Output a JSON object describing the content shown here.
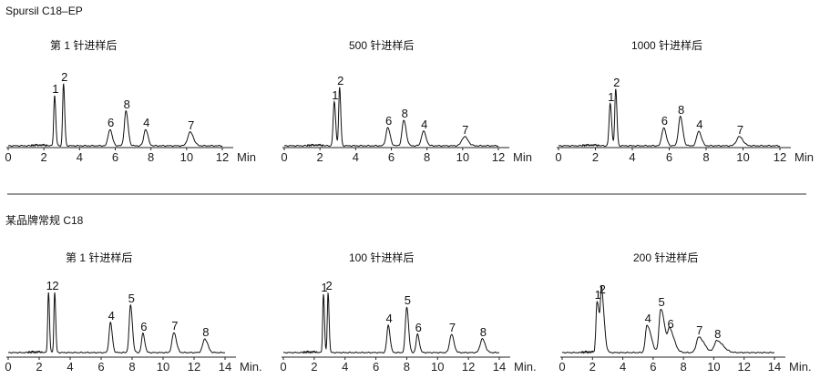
{
  "sections": [
    {
      "label": "Spursil C18–EP",
      "unit_label": "Min"
    },
    {
      "label": "某品牌常规 C18",
      "unit_label": "Min."
    }
  ],
  "chart_data": [
    {
      "type": "line",
      "section": 0,
      "title": "第 1 针进样后",
      "xlim": [
        0,
        12
      ],
      "xticks": [
        0,
        2,
        4,
        6,
        8,
        10,
        12
      ],
      "xlabel": "Min",
      "peaks": [
        {
          "label": "1",
          "rt": 2.6,
          "height": 55,
          "width": 0.05
        },
        {
          "label": "2",
          "rt": 3.1,
          "height": 68,
          "width": 0.05
        },
        {
          "label": "6",
          "rt": 5.7,
          "height": 18,
          "width": 0.1
        },
        {
          "label": "8",
          "rt": 6.6,
          "height": 38,
          "width": 0.09
        },
        {
          "label": "4",
          "rt": 7.7,
          "height": 18,
          "width": 0.1
        },
        {
          "label": "7",
          "rt": 10.2,
          "height": 15,
          "width": 0.14
        }
      ]
    },
    {
      "type": "line",
      "section": 0,
      "title": "500 针进样后",
      "xlim": [
        0,
        12
      ],
      "xticks": [
        0,
        2,
        4,
        6,
        8,
        10,
        12
      ],
      "xlabel": "Min",
      "peaks": [
        {
          "label": "1",
          "rt": 2.8,
          "height": 48,
          "width": 0.06
        },
        {
          "label": "2",
          "rt": 3.1,
          "height": 64,
          "width": 0.05
        },
        {
          "label": "6",
          "rt": 5.8,
          "height": 20,
          "width": 0.1
        },
        {
          "label": "8",
          "rt": 6.7,
          "height": 28,
          "width": 0.1
        },
        {
          "label": "4",
          "rt": 7.8,
          "height": 16,
          "width": 0.11
        },
        {
          "label": "7",
          "rt": 10.1,
          "height": 10,
          "width": 0.15
        }
      ]
    },
    {
      "type": "line",
      "section": 0,
      "title": "1000 针进样后",
      "xlim": [
        0,
        12
      ],
      "xticks": [
        0,
        2,
        4,
        6,
        8,
        10,
        12
      ],
      "xlabel": "Min",
      "peaks": [
        {
          "label": "1",
          "rt": 2.8,
          "height": 46,
          "width": 0.06
        },
        {
          "label": "2",
          "rt": 3.1,
          "height": 62,
          "width": 0.05
        },
        {
          "label": "6",
          "rt": 5.7,
          "height": 20,
          "width": 0.1
        },
        {
          "label": "8",
          "rt": 6.6,
          "height": 32,
          "width": 0.1
        },
        {
          "label": "4",
          "rt": 7.6,
          "height": 16,
          "width": 0.11
        },
        {
          "label": "7",
          "rt": 9.8,
          "height": 10,
          "width": 0.15
        }
      ]
    },
    {
      "type": "line",
      "section": 1,
      "title": "第 1 针进样后",
      "xlim": [
        0,
        14
      ],
      "xticks": [
        0,
        2,
        4,
        6,
        8,
        10,
        12,
        14
      ],
      "xlabel": "Min.",
      "peaks": [
        {
          "label": "1",
          "rt": 2.6,
          "height": 66,
          "width": 0.05
        },
        {
          "label": "2",
          "rt": 3.0,
          "height": 66,
          "width": 0.05
        },
        {
          "label": "4",
          "rt": 6.6,
          "height": 33,
          "width": 0.09
        },
        {
          "label": "5",
          "rt": 7.9,
          "height": 52,
          "width": 0.09
        },
        {
          "label": "6",
          "rt": 8.7,
          "height": 21,
          "width": 0.09
        },
        {
          "label": "7",
          "rt": 10.7,
          "height": 22,
          "width": 0.12
        },
        {
          "label": "8",
          "rt": 12.7,
          "height": 15,
          "width": 0.14
        }
      ]
    },
    {
      "type": "line",
      "section": 1,
      "title": "100 针进样后",
      "xlim": [
        0,
        14
      ],
      "xticks": [
        0,
        2,
        4,
        6,
        8,
        10,
        12,
        14
      ],
      "xlabel": "Min.",
      "peaks": [
        {
          "label": "1",
          "rt": 2.6,
          "height": 64,
          "width": 0.05
        },
        {
          "label": "2",
          "rt": 2.9,
          "height": 66,
          "width": 0.05
        },
        {
          "label": "4",
          "rt": 6.8,
          "height": 30,
          "width": 0.09
        },
        {
          "label": "5",
          "rt": 8.0,
          "height": 50,
          "width": 0.09
        },
        {
          "label": "6",
          "rt": 8.7,
          "height": 20,
          "width": 0.09
        },
        {
          "label": "7",
          "rt": 10.9,
          "height": 20,
          "width": 0.12
        },
        {
          "label": "8",
          "rt": 12.9,
          "height": 15,
          "width": 0.14
        }
      ]
    },
    {
      "type": "line",
      "section": 1,
      "title": "200 针进样后",
      "xlim": [
        0,
        14
      ],
      "xticks": [
        0,
        2,
        4,
        6,
        8,
        10,
        12,
        14
      ],
      "xlabel": "Min.",
      "peaks": [
        {
          "label": "1",
          "rt": 2.3,
          "height": 56,
          "width": 0.07
        },
        {
          "label": "2",
          "rt": 2.6,
          "height": 62,
          "width": 0.07
        },
        {
          "label": "4",
          "rt": 5.6,
          "height": 30,
          "width": 0.11
        },
        {
          "label": "5",
          "rt": 6.5,
          "height": 48,
          "width": 0.11
        },
        {
          "label": "6",
          "rt": 7.1,
          "height": 24,
          "width": 0.12
        },
        {
          "label": "7",
          "rt": 9.0,
          "height": 17,
          "width": 0.15
        },
        {
          "label": "8",
          "rt": 10.2,
          "height": 13,
          "width": 0.17
        }
      ]
    }
  ]
}
